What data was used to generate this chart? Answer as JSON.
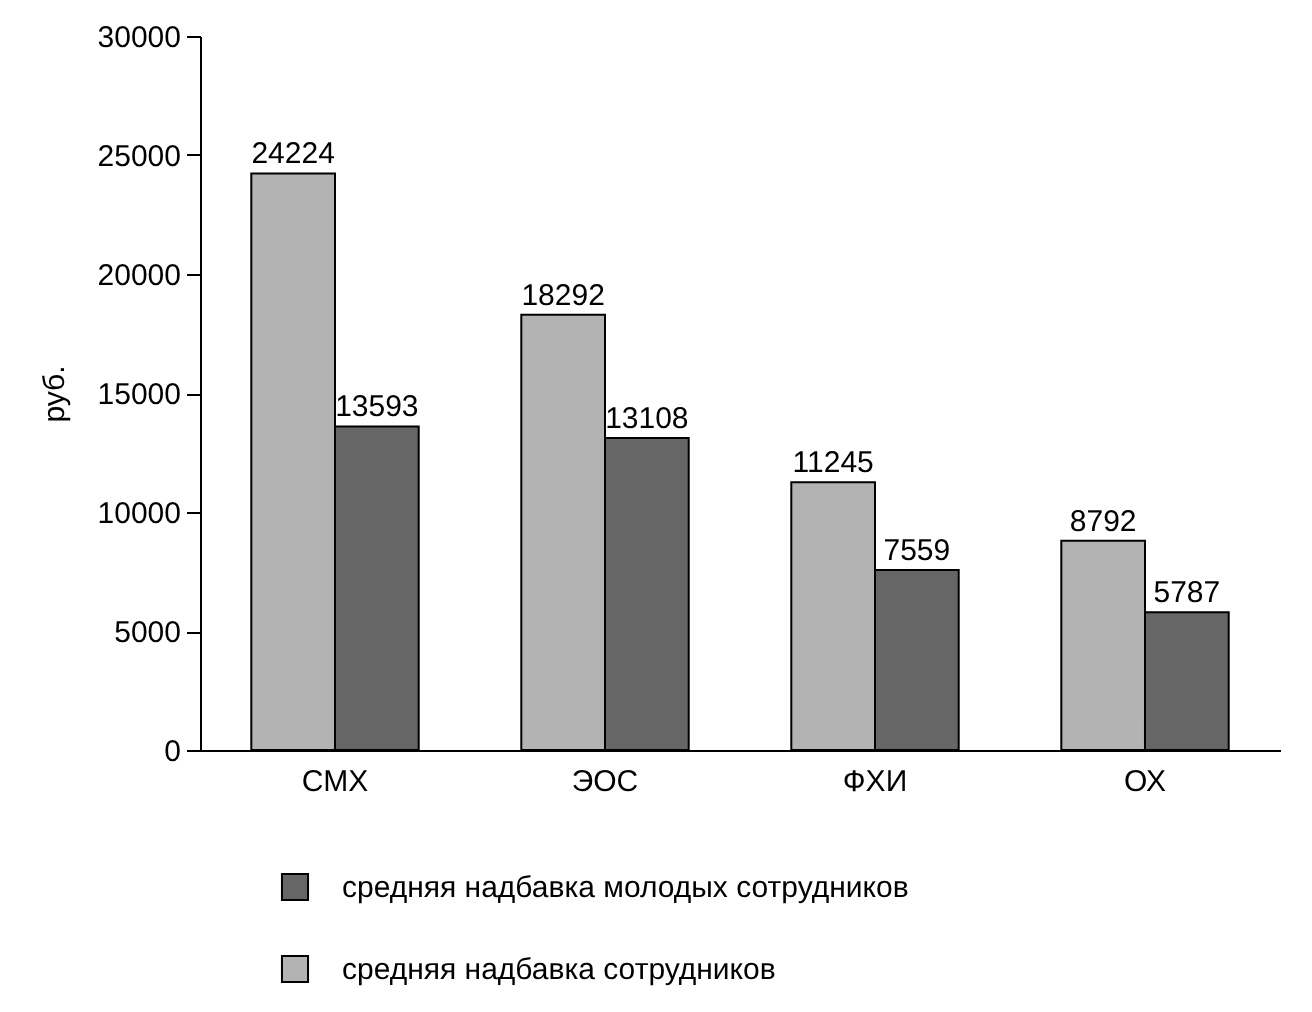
{
  "chart_data": {
    "type": "bar",
    "ylabel": "руб.",
    "categories": [
      "СМХ",
      "ЭОС",
      "ФХИ",
      "ОХ"
    ],
    "series": [
      {
        "name": "средняя надбавка сотрудников",
        "color": "#b3b3b3",
        "values": [
          24224,
          18292,
          11245,
          8792
        ]
      },
      {
        "name": "средняя надбавка молодых сотрудников",
        "color": "#666666",
        "values": [
          13593,
          13108,
          7559,
          5787
        ]
      }
    ],
    "ylim": [
      0,
      30000
    ],
    "yticks": [
      0,
      5000,
      10000,
      15000,
      20000,
      25000,
      30000
    ],
    "grid": false,
    "legend": "bottom",
    "data_labels": true
  }
}
